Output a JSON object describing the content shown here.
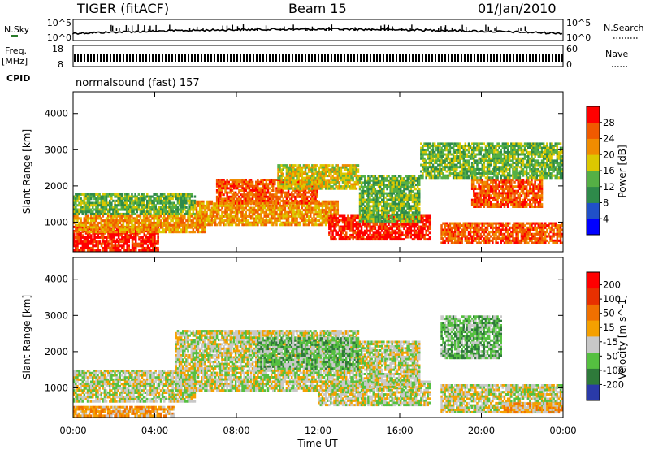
{
  "header": {
    "title": "TIGER (fitACF)",
    "beam": "Beam 15",
    "date": "01/Jan/2010"
  },
  "status_panels": {
    "nsky_label": "N.Sky",
    "nsky_ticks": [
      "10^5",
      "10^0"
    ],
    "nsearch_label": "N.Search",
    "nsearch_ticks": [
      "10^5",
      "10^0"
    ],
    "freq_label": "Freq.",
    "freq_unit": "[MHz]",
    "freq_ticks": [
      "18",
      "8"
    ],
    "nave_label": "Nave",
    "nave_ticks": [
      "60",
      "0"
    ],
    "cpid_label": "CPID",
    "cpid_text": "normalsound (fast) 157"
  },
  "colors": {
    "power_scale": [
      "#0000ff",
      "#2050c8",
      "#2e8a4a",
      "#55b045",
      "#dcc800",
      "#f08c00",
      "#f05a00",
      "#ff0000"
    ],
    "velocity_scale": [
      "#2a3aa8",
      "#2e7a3a",
      "#55c040",
      "#c8c8c8",
      "#f5a000",
      "#f07000",
      "#e83000",
      "#ff0000"
    ]
  },
  "chart_data": [
    {
      "type": "heatmap",
      "panel": "power",
      "xlabel": "Time UT",
      "ylabel": "Slant Range [km]",
      "x_tick_labels": [
        "00:00",
        "04:00",
        "08:00",
        "12:00",
        "16:00",
        "20:00",
        "00:00"
      ],
      "xlim": [
        0,
        24
      ],
      "ylim": [
        180,
        4600
      ],
      "y_ticks": [
        1000,
        2000,
        3000,
        4000
      ],
      "colorbar_label": "Power [dB]",
      "colorbar_ticks": [
        "4",
        "8",
        "12",
        "16",
        "20",
        "24",
        "28"
      ],
      "bands": [
        {
          "t": [
            0,
            4.2
          ],
          "r": [
            200,
            900
          ],
          "level": 7
        },
        {
          "t": [
            0,
            6.5
          ],
          "r": [
            700,
            1200
          ],
          "level": 5
        },
        {
          "t": [
            0,
            6
          ],
          "r": [
            1200,
            1800
          ],
          "level": 3
        },
        {
          "t": [
            6,
            13
          ],
          "r": [
            900,
            1600
          ],
          "level": 5
        },
        {
          "t": [
            7,
            12
          ],
          "r": [
            1500,
            2200
          ],
          "level": 6
        },
        {
          "t": [
            10,
            14
          ],
          "r": [
            1900,
            2600
          ],
          "level": 4
        },
        {
          "t": [
            12.5,
            17.5
          ],
          "r": [
            500,
            1200
          ],
          "level": 7
        },
        {
          "t": [
            14,
            17
          ],
          "r": [
            1000,
            2300
          ],
          "level": 3
        },
        {
          "t": [
            18,
            24
          ],
          "r": [
            400,
            1000
          ],
          "level": 6
        },
        {
          "t": [
            19.5,
            23
          ],
          "r": [
            1400,
            2200
          ],
          "level": 6
        },
        {
          "t": [
            17,
            24
          ],
          "r": [
            2200,
            3200
          ],
          "level": 3
        }
      ]
    },
    {
      "type": "heatmap",
      "panel": "velocity",
      "xlabel": "Time UT",
      "ylabel": "Slant Range [km]",
      "x_tick_labels": [
        "00:00",
        "04:00",
        "08:00",
        "12:00",
        "16:00",
        "20:00",
        "00:00"
      ],
      "xlim": [
        0,
        24
      ],
      "ylim": [
        180,
        4600
      ],
      "y_ticks": [
        1000,
        2000,
        3000,
        4000
      ],
      "colorbar_label": "Velocity [m s^-1]",
      "colorbar_ticks": [
        "200",
        "100",
        "50",
        "15",
        "-15",
        "-50",
        "-100",
        "-200"
      ],
      "bands": [
        {
          "t": [
            0,
            6
          ],
          "r": [
            600,
            1500
          ],
          "level": 3
        },
        {
          "t": [
            0,
            5
          ],
          "r": [
            200,
            500
          ],
          "level": 4
        },
        {
          "t": [
            5,
            14
          ],
          "r": [
            900,
            2600
          ],
          "level": 3
        },
        {
          "t": [
            9,
            14
          ],
          "r": [
            1500,
            2400
          ],
          "level": 2
        },
        {
          "t": [
            12,
            17.5
          ],
          "r": [
            500,
            1200
          ],
          "level": 3
        },
        {
          "t": [
            14,
            17
          ],
          "r": [
            1000,
            2300
          ],
          "level": 3
        },
        {
          "t": [
            18,
            24
          ],
          "r": [
            300,
            1100
          ],
          "level": 3
        },
        {
          "t": [
            18,
            21
          ],
          "r": [
            1800,
            3000
          ],
          "level": 2
        },
        {
          "t": [
            21,
            24
          ],
          "r": [
            300,
            600
          ],
          "level": 4
        }
      ]
    }
  ]
}
